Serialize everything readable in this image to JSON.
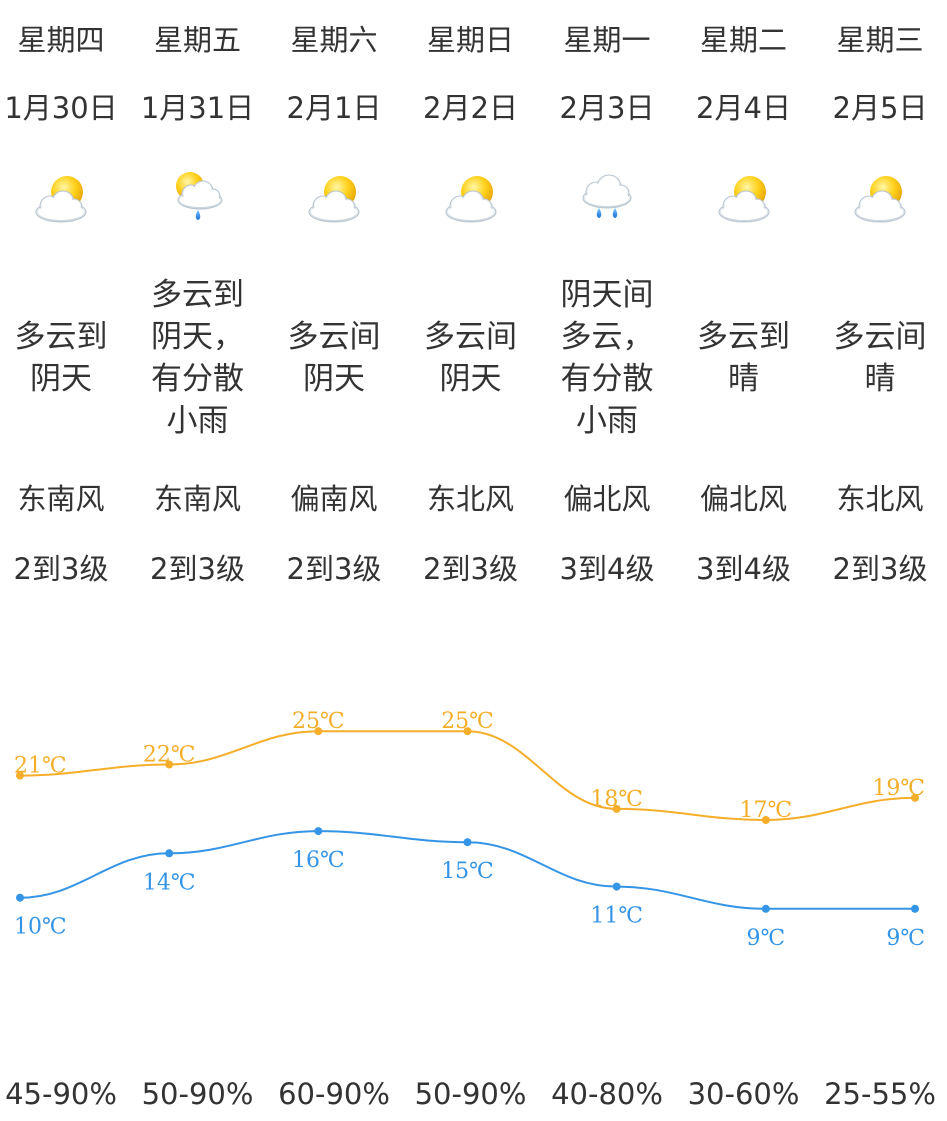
{
  "days": [
    {
      "weekday": "星期四",
      "date": "1月30日",
      "icon": "partly-cloudy-sun-icon",
      "condition": "多云到阴天",
      "wind_dir": "东南风",
      "wind_level": "2到3级",
      "humidity": "45-90%"
    },
    {
      "weekday": "星期五",
      "date": "1月31日",
      "icon": "sun-cloud-rain-icon",
      "condition": "多云到阴天，有分散小雨",
      "wind_dir": "东南风",
      "wind_level": "2到3级",
      "humidity": "50-90%"
    },
    {
      "weekday": "星期六",
      "date": "2月1日",
      "icon": "partly-cloudy-sun-icon",
      "condition": "多云间阴天",
      "wind_dir": "偏南风",
      "wind_level": "2到3级",
      "humidity": "60-90%"
    },
    {
      "weekday": "星期日",
      "date": "2月2日",
      "icon": "partly-cloudy-sun-icon",
      "condition": "多云间阴天",
      "wind_dir": "东北风",
      "wind_level": "2到3级",
      "humidity": "50-90%"
    },
    {
      "weekday": "星期一",
      "date": "2月3日",
      "icon": "cloud-rain-icon",
      "condition": "阴天间多云，有分散小雨",
      "wind_dir": "偏北风",
      "wind_level": "3到4级",
      "humidity": "40-80%"
    },
    {
      "weekday": "星期二",
      "date": "2月4日",
      "icon": "partly-cloudy-sun-icon",
      "condition": "多云到晴",
      "wind_dir": "偏北风",
      "wind_level": "3到4级",
      "humidity": "30-60%"
    },
    {
      "weekday": "星期三",
      "date": "2月5日",
      "icon": "partly-cloudy-sun-icon",
      "condition": "多云间晴",
      "wind_dir": "东北风",
      "wind_level": "2到3级",
      "humidity": "25-55%"
    }
  ],
  "colors": {
    "text": "#333333",
    "high": "#f5ae2a",
    "low": "#3494e6"
  },
  "chart_data": {
    "type": "line",
    "x": [
      "1月30日",
      "1月31日",
      "2月1日",
      "2月2日",
      "2月3日",
      "2月4日",
      "2月5日"
    ],
    "series": [
      {
        "values": [
          21,
          22,
          25,
          25,
          18,
          17,
          19
        ],
        "labels": [
          "21℃",
          "22℃",
          "25℃",
          "25℃",
          "18℃",
          "17℃",
          "19℃"
        ],
        "color": "#f5ae2a"
      },
      {
        "values": [
          10,
          14,
          16,
          15,
          11,
          9,
          9
        ],
        "labels": [
          "10℃",
          "14℃",
          "16℃",
          "15℃",
          "11℃",
          "9℃",
          "9℃"
        ],
        "color": "#3494e6"
      }
    ],
    "xlabel": "",
    "ylabel": "",
    "grid": false
  }
}
